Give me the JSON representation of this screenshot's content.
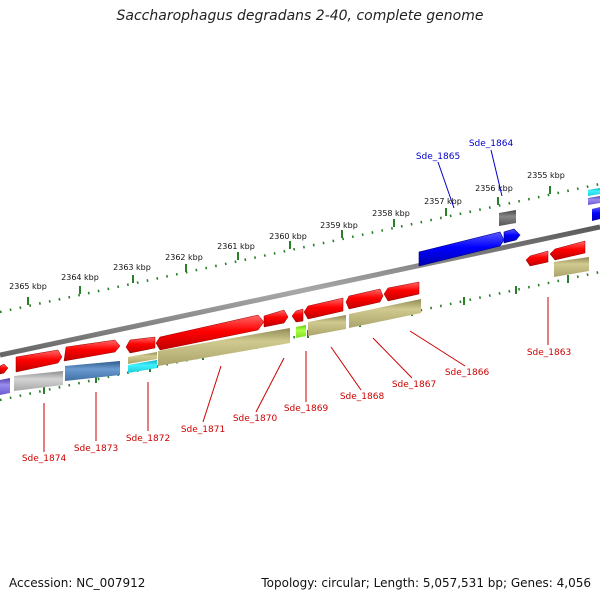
{
  "title": "Saccharophagus degradans 2-40, complete genome",
  "footer": {
    "accession": "Accession: NC_007912",
    "summary": "Topology: circular; Length: 5,057,531 bp; Genes: 4,056"
  },
  "scale_labels": [
    "2365 kbp",
    "2364 kbp",
    "2363 kbp",
    "2362 kbp",
    "2361 kbp",
    "2360 kbp",
    "2359 kbp",
    "2358 kbp",
    "2357 kbp",
    "2356 kbp",
    "2355 kbp"
  ],
  "gene_labels_top": [
    "Sde_1865",
    "Sde_1864"
  ],
  "gene_labels_bottom": [
    "Sde_1874",
    "Sde_1873",
    "Sde_1872",
    "Sde_1871",
    "Sde_1870",
    "Sde_1869",
    "Sde_1868",
    "Sde_1867",
    "Sde_1866",
    "Sde_1863"
  ],
  "colors": {
    "forward_gene": "#ff0000",
    "reverse_gene": "#0000ff",
    "label_forward": "#cc0000",
    "label_reverse": "#0000cc",
    "backbone": "#777777",
    "tick": "#2a7f2a",
    "cog_olive": "#b8b27a",
    "cog_cyan": "#22e5ee",
    "cog_gray": "#b0b0b0",
    "cog_steel": "#4a7bb0",
    "cog_purple": "#7a6ad0",
    "cog_green": "#88ee22",
    "cog_darkgray": "#555555"
  }
}
